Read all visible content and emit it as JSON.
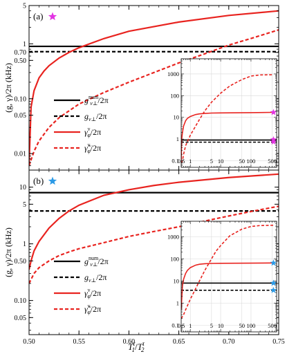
{
  "chart_data": [
    {
      "type": "line",
      "panel_label": "(a)",
      "star_color": "#e233e2",
      "ylabel": "(g, γ)/2π (kHz)",
      "yscale": "log",
      "ylim": [
        0.005,
        5
      ],
      "xlim": [
        0.5,
        0.75
      ],
      "y_ticks": [
        {
          "v": 5,
          "label": "5"
        },
        {
          "v": 1,
          "label": "1"
        },
        {
          "v": 0.7,
          "label": "0.70"
        },
        {
          "v": 0.5,
          "label": "0.50"
        },
        {
          "v": 0.1,
          "label": "0.10"
        },
        {
          "v": 0.05,
          "label": "0.05"
        },
        {
          "v": 0.01,
          "label": "0.01"
        }
      ],
      "series": [
        {
          "name": "g_{ν⊥}^{num}/2π",
          "color": "#000000",
          "dash": false,
          "x": [
            0.5,
            0.75
          ],
          "y": [
            0.9,
            0.9
          ]
        },
        {
          "name": "g_{ν⊥}/2π",
          "color": "#000000",
          "dash": true,
          "x": [
            0.5,
            0.75
          ],
          "y": [
            0.72,
            0.72
          ]
        },
        {
          "name": "γ_φ^ν/2π",
          "color": "#e8231f",
          "dash": false,
          "x": [
            0.5,
            0.502,
            0.505,
            0.51,
            0.515,
            0.52,
            0.53,
            0.54,
            0.55,
            0.575,
            0.6,
            0.65,
            0.7,
            0.75
          ],
          "y": [
            0.006,
            0.07,
            0.14,
            0.24,
            0.32,
            0.4,
            0.55,
            0.7,
            0.85,
            1.25,
            1.7,
            2.5,
            3.3,
            4.0
          ]
        },
        {
          "name": "γ̃_φ^ν/2π",
          "color": "#e8231f",
          "dash": true,
          "x": [
            0.5,
            0.505,
            0.51,
            0.52,
            0.53,
            0.55,
            0.575,
            0.6,
            0.625,
            0.65,
            0.675,
            0.7,
            0.725,
            0.75
          ],
          "y": [
            0.006,
            0.011,
            0.017,
            0.03,
            0.045,
            0.08,
            0.13,
            0.2,
            0.3,
            0.45,
            0.65,
            0.95,
            1.3,
            1.8
          ]
        }
      ],
      "inset": {
        "xscale": "log",
        "yscale": "log",
        "xlim": [
          0.5,
          700
        ],
        "ylim": [
          0.05,
          5000
        ],
        "x_ticks": [
          {
            "v": 0.5,
            "label": "0.5"
          },
          {
            "v": 1,
            "label": "1"
          },
          {
            "v": 5,
            "label": "5"
          },
          {
            "v": 10,
            "label": "10"
          },
          {
            "v": 50,
            "label": "50"
          },
          {
            "v": 100,
            "label": "100"
          },
          {
            "v": 500,
            "label": "500"
          }
        ],
        "y_ticks": [
          {
            "v": 1000,
            "label": "1000"
          },
          {
            "v": 100,
            "label": "100"
          },
          {
            "v": 10,
            "label": "10"
          },
          {
            "v": 1,
            "label": "1"
          },
          {
            "v": 0.1,
            "label": "0.1"
          }
        ],
        "series": [
          {
            "color": "#000000",
            "dash": false,
            "x": [
              0.5,
              700
            ],
            "y": [
              0.9,
              0.9
            ]
          },
          {
            "color": "#000000",
            "dash": true,
            "x": [
              0.5,
              700
            ],
            "y": [
              0.72,
              0.72
            ]
          },
          {
            "color": "#e8231f",
            "dash": false,
            "x": [
              0.5,
              0.52,
              0.55,
              0.6,
              0.7,
              0.8,
              1,
              1.5,
              2,
              3,
              5,
              10,
              100,
              550
            ],
            "y": [
              0.08,
              1.0,
              2.0,
              4.0,
              7.0,
              9.0,
              11.0,
              13.5,
              14.5,
              15.2,
              15.8,
              16.0,
              16.5,
              17.0
            ]
          },
          {
            "color": "#e8231f",
            "dash": true,
            "x": [
              0.5,
              0.55,
              0.6,
              0.7,
              1,
              1.5,
              2,
              3,
              5,
              10,
              20,
              50,
              100,
              200,
              550
            ],
            "y": [
              0.08,
              0.1,
              0.2,
              0.5,
              1.5,
              4,
              8,
              20,
              50,
              130,
              280,
              550,
              800,
              900,
              920
            ]
          }
        ],
        "stars": [
          {
            "x": 550,
            "y": 17.0,
            "color": "#e233e2"
          },
          {
            "x": 550,
            "y": 0.95,
            "color": "#e233e2"
          },
          {
            "x": 550,
            "y": 0.75,
            "color": "#e233e2"
          }
        ]
      }
    },
    {
      "type": "line",
      "panel_label": "(b)",
      "star_color": "#2b9ae6",
      "ylabel": "(g, γ)/2π (kHz)",
      "yscale": "log",
      "ylim": [
        0.025,
        20
      ],
      "xlim": [
        0.5,
        0.75
      ],
      "y_ticks": [
        {
          "v": 10,
          "label": "10"
        },
        {
          "v": 5,
          "label": "5"
        },
        {
          "v": 1,
          "label": "1"
        },
        {
          "v": 0.5,
          "label": "0.50"
        },
        {
          "v": 0.1,
          "label": "0.10"
        },
        {
          "v": 0.05,
          "label": "0.05"
        }
      ],
      "series": [
        {
          "name": "g_{ν⊥}^{num}/2π",
          "color": "#000000",
          "dash": false,
          "x": [
            0.5,
            0.75
          ],
          "y": [
            8.0,
            8.0
          ]
        },
        {
          "name": "g_{ν⊥}/2π",
          "color": "#000000",
          "dash": true,
          "x": [
            0.5,
            0.75
          ],
          "y": [
            3.8,
            3.8
          ]
        },
        {
          "name": "γ_φ^ν/2π",
          "color": "#e8231f",
          "dash": false,
          "x": [
            0.5,
            0.502,
            0.505,
            0.51,
            0.52,
            0.53,
            0.54,
            0.55,
            0.575,
            0.6,
            0.625,
            0.65,
            0.7,
            0.75
          ],
          "y": [
            0.35,
            0.5,
            0.75,
            1.1,
            1.9,
            2.8,
            3.8,
            4.8,
            7.2,
            9.0,
            10.7,
            12.2,
            14.8,
            17.0
          ]
        },
        {
          "name": "γ̃_φ^ν/2π",
          "color": "#e8231f",
          "dash": true,
          "x": [
            0.5,
            0.505,
            0.51,
            0.52,
            0.53,
            0.54,
            0.55,
            0.575,
            0.6,
            0.625,
            0.65,
            0.675,
            0.7,
            0.725,
            0.75
          ],
          "y": [
            0.2,
            0.3,
            0.38,
            0.5,
            0.62,
            0.72,
            0.82,
            1.05,
            1.35,
            1.65,
            2.0,
            2.5,
            3.1,
            3.8,
            4.6
          ]
        }
      ],
      "inset": {
        "xscale": "log",
        "yscale": "log",
        "xlim": [
          0.5,
          700
        ],
        "ylim": [
          0.05,
          5000
        ],
        "x_ticks": [
          {
            "v": 0.5,
            "label": "0.5"
          },
          {
            "v": 1,
            "label": "1"
          },
          {
            "v": 5,
            "label": "5"
          },
          {
            "v": 10,
            "label": "10"
          },
          {
            "v": 50,
            "label": "50"
          },
          {
            "v": 100,
            "label": "100"
          },
          {
            "v": 500,
            "label": "500"
          }
        ],
        "y_ticks": [
          {
            "v": 1000,
            "label": "1000"
          },
          {
            "v": 100,
            "label": "100"
          },
          {
            "v": 10,
            "label": "10"
          },
          {
            "v": 1,
            "label": "1"
          },
          {
            "v": 0.1,
            "label": "0.1"
          }
        ],
        "series": [
          {
            "color": "#000000",
            "dash": false,
            "x": [
              0.5,
              700
            ],
            "y": [
              8.0,
              8.0
            ]
          },
          {
            "color": "#000000",
            "dash": true,
            "x": [
              0.5,
              700
            ],
            "y": [
              3.8,
              3.8
            ]
          },
          {
            "color": "#e8231f",
            "dash": false,
            "x": [
              0.5,
              0.55,
              0.6,
              0.7,
              0.8,
              1,
              1.5,
              2,
              3,
              5,
              10,
              100,
              550
            ],
            "y": [
              0.5,
              6,
              12,
              22,
              30,
              40,
              52,
              57,
              60,
              62,
              63,
              64,
              65
            ]
          },
          {
            "color": "#e8231f",
            "dash": true,
            "x": [
              0.5,
              0.6,
              0.7,
              1,
              1.5,
              2,
              3,
              5,
              7,
              10,
              20,
              50,
              100,
              200,
              550
            ],
            "y": [
              0.2,
              0.3,
              0.5,
              1.5,
              4.5,
              10,
              30,
              100,
              220,
              400,
              1100,
              2200,
              2900,
              3200,
              3300
            ]
          }
        ],
        "stars": [
          {
            "x": 550,
            "y": 65,
            "color": "#2b9ae6"
          },
          {
            "x": 550,
            "y": 8.0,
            "color": "#2b9ae6"
          },
          {
            "x": 550,
            "y": 3.8,
            "color": "#2b9ae6"
          }
        ]
      }
    }
  ],
  "shared_x": {
    "xlabel_main": "T",
    "xlabel_sub": "1",
    "xlabel_sup": "τ",
    "xlabel_den_main": "T",
    "xlabel_den_sub": "2",
    "xlabel_den_sup": "τ",
    "x_ticks": [
      {
        "v": 0.5,
        "label": "0.50"
      },
      {
        "v": 0.55,
        "label": "0.55"
      },
      {
        "v": 0.6,
        "label": "0.60"
      },
      {
        "v": 0.65,
        "label": "0.65"
      },
      {
        "v": 0.7,
        "label": "0.70"
      },
      {
        "v": 0.75,
        "label": "0.75"
      }
    ]
  },
  "legend": [
    {
      "main": "g",
      "sup": "num",
      "sub": "ν⊥",
      "tail": "/2π",
      "color": "#000000",
      "dash": false
    },
    {
      "main": "g",
      "sup": "",
      "sub": "ν⊥",
      "tail": "/2π",
      "color": "#000000",
      "dash": true
    },
    {
      "main": "γ",
      "sup": "ν",
      "sub": "φ",
      "tail": "/2π",
      "color": "#e8231f",
      "dash": false
    },
    {
      "main": "γ̃",
      "sup": "ν",
      "sub": "φ",
      "tail": "/2π",
      "color": "#e8231f",
      "dash": true
    }
  ]
}
